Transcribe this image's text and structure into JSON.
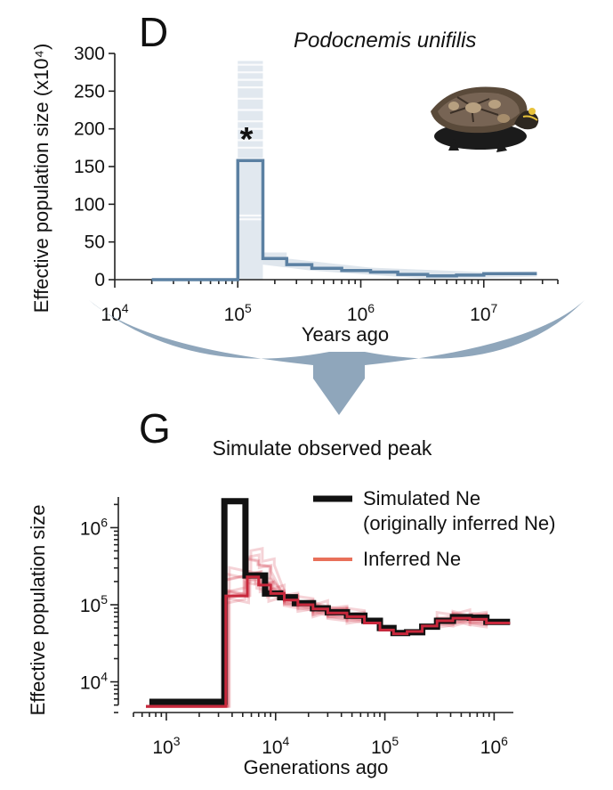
{
  "panel_d": {
    "letter": "D",
    "species": "Podocnemis unifilis",
    "significance_marker": "*",
    "turtle_icon": "turtle-illustration"
  },
  "panel_g": {
    "letter": "G",
    "subtitle": "Simulate observed peak"
  },
  "colors": {
    "d_line": "#5b80a2",
    "d_band": "#c9d5e1",
    "arrow": "#8fa6bb",
    "simulated": "#111111",
    "inferred": "#e8705a",
    "inferred_replicates": "#d1384a"
  },
  "chart_data": [
    {
      "type": "line",
      "id": "panel-d",
      "title": "Podocnemis unifilis",
      "xlabel": "Years ago",
      "ylabel": "Effective population size (x10⁴)",
      "xscale": "log",
      "xlim": [
        10000,
        40000000
      ],
      "ylim": [
        0,
        300
      ],
      "yticks": [
        0,
        50,
        100,
        150,
        200,
        250,
        300
      ],
      "xticks": [
        {
          "value": 10000,
          "base": "10",
          "exp": "4"
        },
        {
          "value": 100000,
          "base": "10",
          "exp": "5"
        },
        {
          "value": 1000000,
          "base": "10",
          "exp": "6"
        },
        {
          "value": 10000000,
          "base": "10",
          "exp": "7"
        }
      ],
      "series": [
        {
          "name": "Inferred Ne",
          "x": [
            20000,
            100000,
            100000,
            160000,
            160000,
            250000,
            250000,
            400000,
            400000,
            700000,
            700000,
            1200000,
            1200000,
            2000000,
            2000000,
            3500000,
            3500000,
            6000000,
            6000000,
            10000000,
            10000000,
            27000000
          ],
          "y": [
            0,
            0,
            158,
            158,
            28,
            28,
            20,
            20,
            15,
            15,
            12,
            12,
            10,
            10,
            7,
            7,
            5,
            5,
            6,
            6,
            8,
            8
          ]
        }
      ],
      "bootstrap_peak_levels": [
        80,
        85,
        160,
        175,
        185,
        200,
        210,
        225,
        240,
        255,
        265,
        275,
        285
      ],
      "bootstrap_peak_range": [
        100000,
        160000
      ]
    },
    {
      "type": "line",
      "id": "panel-g",
      "xlabel": "Generations ago",
      "ylabel": "Effective population size",
      "xscale": "log",
      "yscale": "log",
      "xlim": [
        500,
        1500000
      ],
      "ylim": [
        4000,
        2500000
      ],
      "xticks": [
        {
          "value": 1000,
          "base": "10",
          "exp": "3"
        },
        {
          "value": 10000,
          "base": "10",
          "exp": "4"
        },
        {
          "value": 100000,
          "base": "10",
          "exp": "5"
        },
        {
          "value": 1000000,
          "base": "10",
          "exp": "6"
        }
      ],
      "yticks": [
        {
          "value": 10000,
          "base": "10",
          "exp": "4"
        },
        {
          "value": 100000,
          "base": "10",
          "exp": "5"
        },
        {
          "value": 1000000,
          "base": "10",
          "exp": "6"
        }
      ],
      "legend": {
        "position": "top-right",
        "entries": [
          {
            "label_line1": "Simulated Ne",
            "label_line2": "(originally inferred Ne)"
          },
          {
            "label_line1": "Inferred Ne"
          }
        ]
      },
      "series": [
        {
          "name": "Simulated Ne (originally inferred Ne)",
          "x": [
            700,
            3400,
            3400,
            5300,
            5300,
            8000,
            8000,
            11000,
            11000,
            15000,
            15000,
            22000,
            22000,
            30000,
            30000,
            45000,
            45000,
            65000,
            65000,
            90000,
            90000,
            120000,
            120000,
            160000,
            160000,
            220000,
            220000,
            300000,
            300000,
            420000,
            420000,
            600000,
            600000,
            850000,
            850000,
            1400000
          ],
          "y": [
            5500,
            5500,
            2200000,
            2200000,
            240000,
            240000,
            140000,
            140000,
            125000,
            125000,
            105000,
            105000,
            90000,
            90000,
            80000,
            80000,
            72000,
            72000,
            62000,
            62000,
            50000,
            50000,
            43000,
            43000,
            44000,
            44000,
            52000,
            52000,
            62000,
            62000,
            69000,
            69000,
            68000,
            68000,
            60000,
            60000
          ]
        },
        {
          "name": "Inferred Ne",
          "x": [
            650,
            3500,
            3500,
            5500,
            5500,
            7000,
            7000,
            9000,
            9000,
            12000,
            12000,
            16000,
            16000,
            22000,
            22000,
            30000,
            30000,
            45000,
            45000,
            65000,
            65000,
            90000,
            90000,
            120000,
            120000,
            160000,
            160000,
            220000,
            220000,
            300000,
            300000,
            420000,
            420000,
            600000,
            600000,
            850000,
            850000,
            1400000
          ],
          "y": [
            4800,
            4800,
            130000,
            130000,
            230000,
            230000,
            180000,
            180000,
            140000,
            140000,
            115000,
            115000,
            100000,
            100000,
            88000,
            88000,
            78000,
            78000,
            70000,
            70000,
            58000,
            58000,
            47000,
            47000,
            42000,
            42000,
            45000,
            45000,
            53000,
            53000,
            62000,
            62000,
            67000,
            67000,
            65000,
            65000,
            58000,
            58000
          ]
        }
      ]
    }
  ]
}
